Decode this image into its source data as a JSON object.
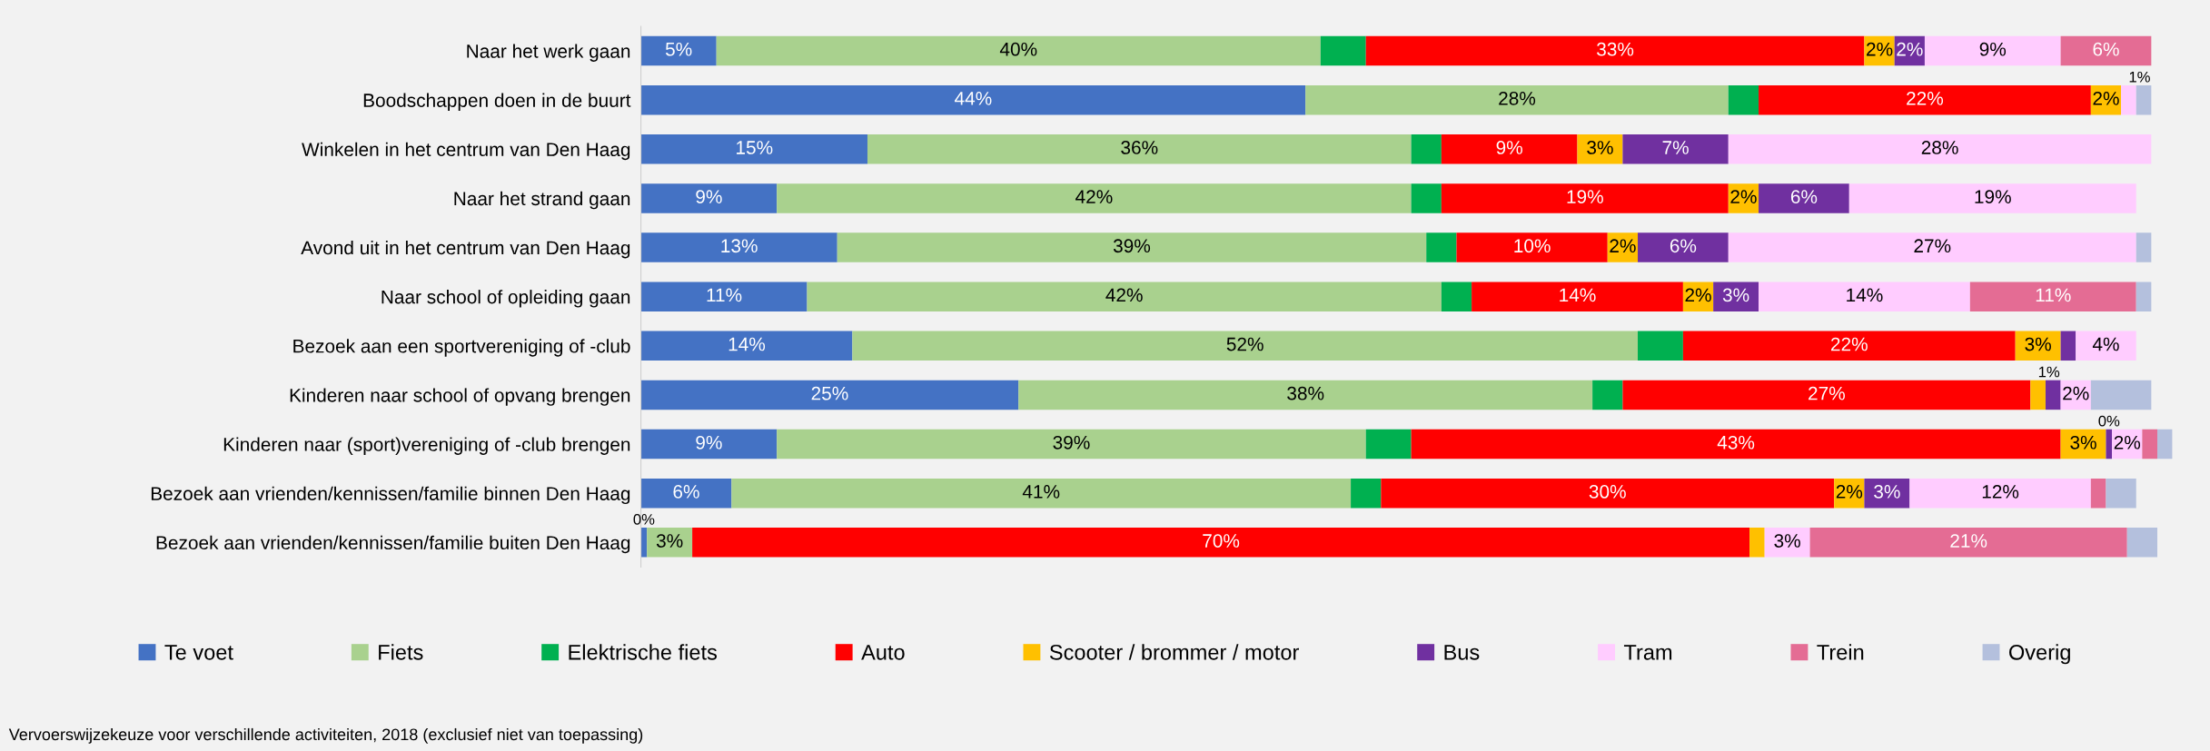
{
  "chart_data": {
    "type": "bar",
    "orientation": "horizontal",
    "stacked": true,
    "legend": "bottom",
    "grid": false,
    "categories": [
      "Naar het werk gaan",
      "Boodschappen doen in de buurt",
      "Winkelen in het centrum van Den Haag",
      "Naar het strand gaan",
      "Avond uit in het centrum van Den Haag",
      "Naar school of opleiding gaan",
      "Bezoek aan een sportvereniging of -club",
      "Kinderen naar school of opvang brengen",
      "Kinderen naar (sport)vereniging of -club brengen",
      "Bezoek aan vrienden/kennissen/familie binnen Den Haag",
      "Bezoek aan vrienden/kennissen/familie buiten Den Haag"
    ],
    "series": [
      {
        "name": "Te voet",
        "color": "#4472c4",
        "values": [
          5,
          44,
          15,
          9,
          13,
          11,
          14,
          25,
          9,
          6,
          0.4
        ],
        "value_labels": [
          "5%",
          "44%",
          "15%",
          "9%",
          "13%",
          "11%",
          "14%",
          "25%",
          "9%",
          "6%",
          "0%"
        ]
      },
      {
        "name": "Fiets",
        "color": "#a9d18e",
        "values": [
          40,
          28,
          36,
          42,
          39,
          42,
          52,
          38,
          39,
          41,
          3
        ],
        "value_labels": [
          "40%",
          "28%",
          "36%",
          "42%",
          "39%",
          "42%",
          "52%",
          "38%",
          "39%",
          "41%",
          "3%"
        ]
      },
      {
        "name": "Elektrische fiets",
        "color": "#00b050",
        "values": [
          3,
          2,
          2,
          2,
          2,
          2,
          3,
          2,
          3,
          2,
          0
        ],
        "value_labels": [
          null,
          null,
          null,
          null,
          null,
          null,
          null,
          null,
          null,
          null,
          null
        ]
      },
      {
        "name": "Auto",
        "color": "#ff0000",
        "values": [
          33,
          22,
          9,
          19,
          10,
          14,
          22,
          27,
          43,
          30,
          70
        ],
        "value_labels": [
          "33%",
          "22%",
          "9%",
          "19%",
          "10%",
          "14%",
          "22%",
          "27%",
          "43%",
          "30%",
          "70%"
        ]
      },
      {
        "name": "Scooter / brommer / motor",
        "color": "#ffc000",
        "values": [
          2,
          2,
          3,
          2,
          2,
          2,
          3,
          1,
          3,
          2,
          1
        ],
        "value_labels": [
          "2%",
          "2%",
          "3%",
          "2%",
          "2%",
          "2%",
          "3%",
          "1%",
          "3%",
          "2%",
          null
        ]
      },
      {
        "name": "Bus",
        "color": "#7030a0",
        "values": [
          2,
          0,
          7,
          6,
          6,
          3,
          1,
          1,
          0.4,
          3,
          0
        ],
        "value_labels": [
          "2%",
          null,
          "7%",
          "6%",
          "6%",
          "3%",
          null,
          null,
          "0%",
          "3%",
          null
        ]
      },
      {
        "name": "Tram",
        "color": "#ffccff",
        "values": [
          9,
          1,
          28,
          19,
          27,
          14,
          4,
          2,
          2,
          12,
          3
        ],
        "value_labels": [
          "9%",
          "1%",
          "28%",
          "19%",
          "27%",
          "14%",
          "4%",
          "2%",
          "2%",
          "12%",
          "3%"
        ]
      },
      {
        "name": "Trein",
        "color": "#e46c94",
        "values": [
          6,
          0,
          0,
          0,
          0,
          11,
          0,
          0,
          1,
          1,
          21
        ],
        "value_labels": [
          "6%",
          null,
          null,
          null,
          null,
          "11%",
          null,
          null,
          null,
          null,
          "21%"
        ]
      },
      {
        "name": "Overig",
        "color": "#b4c0dd",
        "values": [
          0,
          1,
          0,
          0,
          1,
          1,
          0,
          4,
          1,
          2,
          2
        ],
        "value_labels": [
          null,
          null,
          null,
          null,
          null,
          null,
          null,
          null,
          null,
          null,
          null
        ]
      }
    ],
    "annotations": [
      "Vervoerswijzekeuze voor verschillende activiteiten, 2018 (exclusief niet van toepassing)"
    ]
  }
}
